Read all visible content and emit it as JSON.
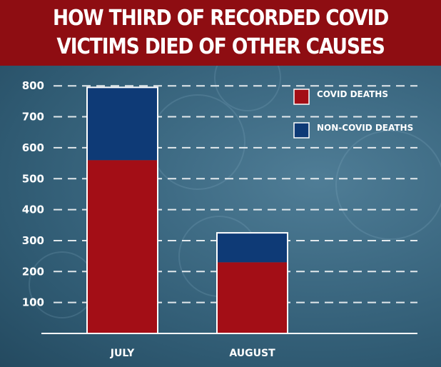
{
  "header": {
    "title_line1": "HOW THIRD OF RECORDED COVID",
    "title_line2": "VICTIMS DIED OF OTHER CAUSES"
  },
  "colors": {
    "banner": "#8e0d12",
    "covid": "#a30e16",
    "non_covid": "#0e3a76",
    "gridline": "#ffffff"
  },
  "chart_data": {
    "type": "bar",
    "stacked": true,
    "categories": [
      "JULY",
      "AUGUST"
    ],
    "series": [
      {
        "name": "COVID DEATHS",
        "values": [
          560,
          230
        ]
      },
      {
        "name": "NON-COVID DEATHS",
        "values": [
          235,
          95
        ]
      }
    ],
    "yticks": [
      100,
      200,
      300,
      400,
      500,
      600,
      700,
      800
    ],
    "ylim": [
      0,
      800
    ],
    "grid": true,
    "grid_style": "dashed",
    "legend_position": "top-right",
    "title": "HOW THIRD OF RECORDED COVID VICTIMS DIED OF OTHER CAUSES",
    "xlabel": "",
    "ylabel": ""
  }
}
